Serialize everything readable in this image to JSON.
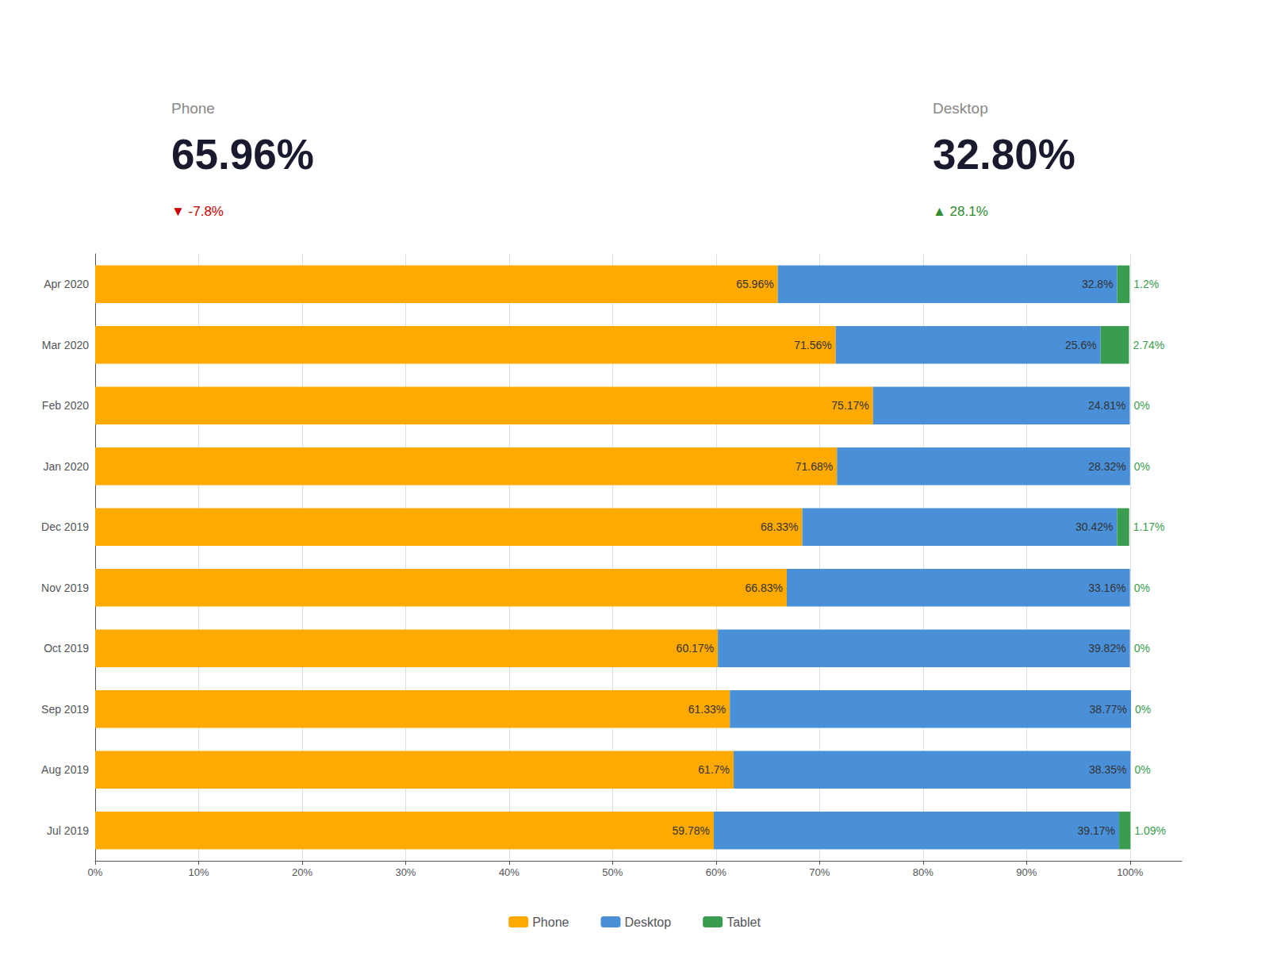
{
  "chart_data": {
    "type": "bar",
    "orientation": "horizontal",
    "stacked": true,
    "grid": true,
    "legend": "bottom",
    "data_labels": true,
    "categories": [
      "Apr 2020",
      "Mar 2020",
      "Feb 2020",
      "Jan 2020",
      "Dec 2019",
      "Nov 2019",
      "Oct 2019",
      "Sep 2019",
      "Aug 2019",
      "Jul 2019"
    ],
    "series": [
      {
        "name": "Phone",
        "color": "#FFAA00",
        "values": [
          65.96,
          71.56,
          75.17,
          71.68,
          68.33,
          66.83,
          60.17,
          61.33,
          61.7,
          59.78
        ],
        "value_labels": [
          "65.96%",
          "71.56%",
          "75.17%",
          "71.68%",
          "68.33%",
          "66.83%",
          "60.17%",
          "61.33%",
          "61.7%",
          "59.78%"
        ]
      },
      {
        "name": "Desktop",
        "color": "#4A90D9",
        "values": [
          32.8,
          25.6,
          24.81,
          28.32,
          30.42,
          33.16,
          39.82,
          38.77,
          38.35,
          39.17
        ],
        "value_labels": [
          "32.8%",
          "25.6%",
          "24.81%",
          "28.32%",
          "30.42%",
          "33.16%",
          "39.82%",
          "38.77%",
          "38.35%",
          "39.17%"
        ]
      },
      {
        "name": "Tablet",
        "color": "#3A9C4E",
        "values": [
          1.2,
          2.74,
          0.0,
          0.0,
          1.17,
          0.0,
          0.0,
          0.0,
          0.0,
          1.09
        ],
        "value_labels": [
          "1.2%",
          "2.74%",
          "0%",
          "0%",
          "1.17%",
          "0%",
          "0%",
          "0%",
          "0%",
          "1.09%"
        ]
      }
    ],
    "xlim": [
      0,
      105
    ],
    "xticks": [
      {
        "value": 0,
        "label": "0%"
      },
      {
        "value": 10,
        "label": "10%"
      },
      {
        "value": 20,
        "label": "20%"
      },
      {
        "value": 30,
        "label": "30%"
      },
      {
        "value": 40,
        "label": "40%"
      },
      {
        "value": 50,
        "label": "50%"
      },
      {
        "value": 60,
        "label": "60%"
      },
      {
        "value": 70,
        "label": "70%"
      },
      {
        "value": 80,
        "label": "80%"
      },
      {
        "value": 90,
        "label": "90%"
      },
      {
        "value": 100,
        "label": "100%"
      }
    ],
    "annotations": [
      {
        "text": "Phone"
      },
      {
        "text": "65.96%"
      },
      {
        "text": "▼ -7.8%",
        "color": "#CC0000"
      },
      {
        "text": "Desktop"
      },
      {
        "text": "32.80%"
      },
      {
        "text": "▲ 28.1%",
        "color": "#2E8B2E"
      }
    ]
  }
}
